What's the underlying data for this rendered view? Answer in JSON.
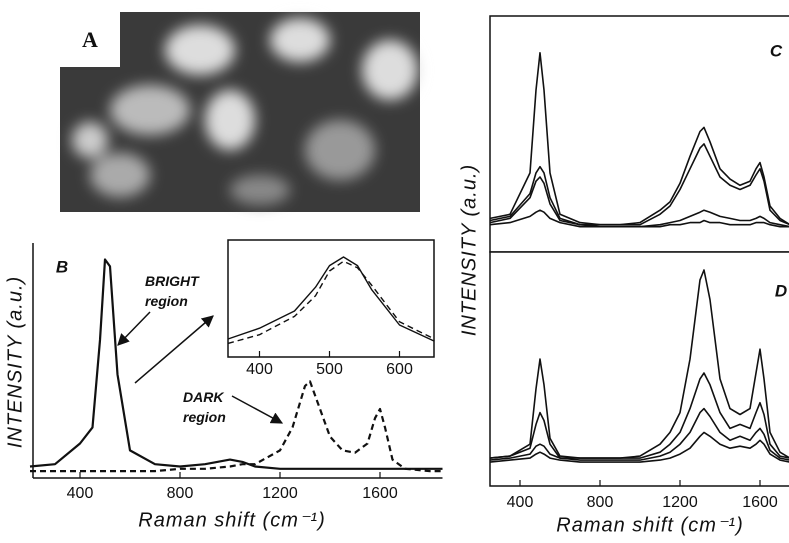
{
  "panel_a": {
    "label": "A"
  },
  "chart_data": [
    {
      "type": "line",
      "panel_label": "B",
      "y_label": "INTENSITY (a.u.)",
      "x_label": "Raman shift (cm⁻¹)",
      "annotations": [
        "BRIGHT\nregion",
        "DARK\nregion"
      ],
      "x": [
        200,
        300,
        400,
        450,
        480,
        500,
        520,
        550,
        600,
        700,
        800,
        900,
        1000,
        1050,
        1100,
        1200,
        1250,
        1300,
        1320,
        1350,
        1400,
        1450,
        1500,
        1550,
        1580,
        1600,
        1620,
        1650,
        1700,
        1800,
        1850
      ],
      "series": [
        {
          "color": "#111111",
          "dash": false,
          "values": [
            5,
            6,
            15,
            22,
            60,
            95,
            92,
            45,
            12,
            6,
            5,
            6,
            8,
            7,
            5,
            4,
            4,
            4,
            4,
            4,
            4,
            4,
            4,
            4,
            4,
            4,
            4,
            4,
            4,
            4,
            4
          ]
        },
        {
          "color": "#111111",
          "dash": true,
          "values": [
            3,
            3,
            3,
            3,
            3,
            3,
            3,
            3,
            3,
            3,
            4,
            4,
            5,
            6,
            6,
            12,
            22,
            40,
            42,
            33,
            18,
            12,
            11,
            15,
            26,
            30,
            22,
            8,
            4,
            3,
            3
          ]
        }
      ],
      "xlim": [
        200,
        1850
      ],
      "ylim": [
        0,
        100
      ],
      "xticks": [
        400,
        800,
        1200,
        1600
      ]
    },
    {
      "type": "line",
      "x": [
        355,
        400,
        450,
        480,
        500,
        520,
        540,
        560,
        600,
        650
      ],
      "series": [
        {
          "color": "#111111",
          "dash": false,
          "values": [
            12,
            22,
            38,
            60,
            80,
            88,
            80,
            58,
            25,
            10
          ]
        },
        {
          "color": "#111111",
          "dash": true,
          "values": [
            8,
            16,
            33,
            52,
            75,
            84,
            78,
            62,
            28,
            12
          ]
        }
      ],
      "xlim": [
        355,
        650
      ],
      "ylim": [
        0,
        100
      ],
      "xticks": [
        400,
        500,
        600
      ]
    },
    {
      "type": "line",
      "panel_label": "C",
      "y_label": "INTENSITY (a.u.)",
      "x": [
        250,
        350,
        450,
        480,
        500,
        520,
        550,
        600,
        700,
        800,
        900,
        1000,
        1100,
        1150,
        1200,
        1250,
        1300,
        1320,
        1350,
        1400,
        1450,
        1500,
        1550,
        1580,
        1600,
        1620,
        1650,
        1700,
        1750
      ],
      "series": [
        {
          "color": "#111111",
          "dash": false,
          "values": [
            8,
            10,
            30,
            70,
            88,
            70,
            30,
            10,
            6,
            5,
            5,
            6,
            12,
            16,
            25,
            38,
            50,
            52,
            45,
            32,
            27,
            24,
            26,
            32,
            35,
            28,
            14,
            8,
            5
          ]
        },
        {
          "color": "#111111",
          "dash": false,
          "values": [
            7,
            9,
            20,
            30,
            33,
            30,
            18,
            8,
            5,
            5,
            5,
            5,
            10,
            14,
            22,
            32,
            42,
            44,
            38,
            28,
            24,
            22,
            24,
            29,
            32,
            26,
            12,
            7,
            5
          ]
        },
        {
          "color": "#111111",
          "dash": false,
          "values": [
            6,
            8,
            18,
            26,
            28,
            25,
            15,
            7,
            5,
            4,
            4,
            4,
            5,
            6,
            7,
            9,
            11,
            12,
            11,
            9,
            8,
            7,
            7,
            8,
            9,
            8,
            6,
            5,
            4
          ]
        },
        {
          "color": "#111111",
          "dash": false,
          "values": [
            5,
            6,
            9,
            11,
            12,
            11,
            8,
            6,
            4,
            4,
            4,
            4,
            4,
            5,
            5,
            6,
            6,
            7,
            6,
            6,
            5,
            5,
            5,
            6,
            6,
            6,
            5,
            4,
            4
          ]
        }
      ],
      "xlim": [
        250,
        1750
      ],
      "ylim": [
        0,
        100
      ]
    },
    {
      "type": "line",
      "panel_label": "D",
      "x_label": "Raman shift (cm⁻¹)",
      "x": [
        250,
        350,
        450,
        480,
        500,
        520,
        550,
        600,
        700,
        800,
        900,
        1000,
        1100,
        1150,
        1200,
        1250,
        1300,
        1320,
        1350,
        1400,
        1450,
        1500,
        1550,
        1580,
        1600,
        1620,
        1650,
        1700,
        1750
      ],
      "series": [
        {
          "color": "#111111",
          "dash": false,
          "values": [
            5,
            6,
            12,
            40,
            55,
            42,
            15,
            6,
            5,
            5,
            5,
            6,
            12,
            18,
            28,
            55,
            95,
            100,
            85,
            45,
            30,
            27,
            30,
            48,
            60,
            45,
            18,
            8,
            5
          ]
        },
        {
          "color": "#111111",
          "dash": false,
          "values": [
            5,
            6,
            10,
            22,
            28,
            24,
            12,
            5,
            5,
            5,
            5,
            5,
            8,
            12,
            18,
            30,
            45,
            48,
            42,
            28,
            20,
            22,
            20,
            28,
            33,
            27,
            12,
            6,
            5
          ]
        },
        {
          "color": "#111111",
          "dash": false,
          "values": [
            4,
            5,
            7,
            11,
            12,
            11,
            7,
            5,
            4,
            4,
            4,
            4,
            6,
            8,
            12,
            18,
            28,
            30,
            26,
            18,
            14,
            16,
            14,
            18,
            20,
            17,
            9,
            5,
            4
          ]
        },
        {
          "color": "#111111",
          "dash": false,
          "values": [
            3,
            4,
            5,
            7,
            8,
            7,
            5,
            4,
            3,
            3,
            3,
            3,
            4,
            5,
            7,
            10,
            16,
            18,
            16,
            12,
            10,
            11,
            10,
            12,
            14,
            12,
            7,
            4,
            3
          ]
        }
      ],
      "xlim": [
        250,
        1750
      ],
      "ylim": [
        0,
        100
      ],
      "xticks": [
        400,
        800,
        1200,
        1600
      ]
    }
  ]
}
